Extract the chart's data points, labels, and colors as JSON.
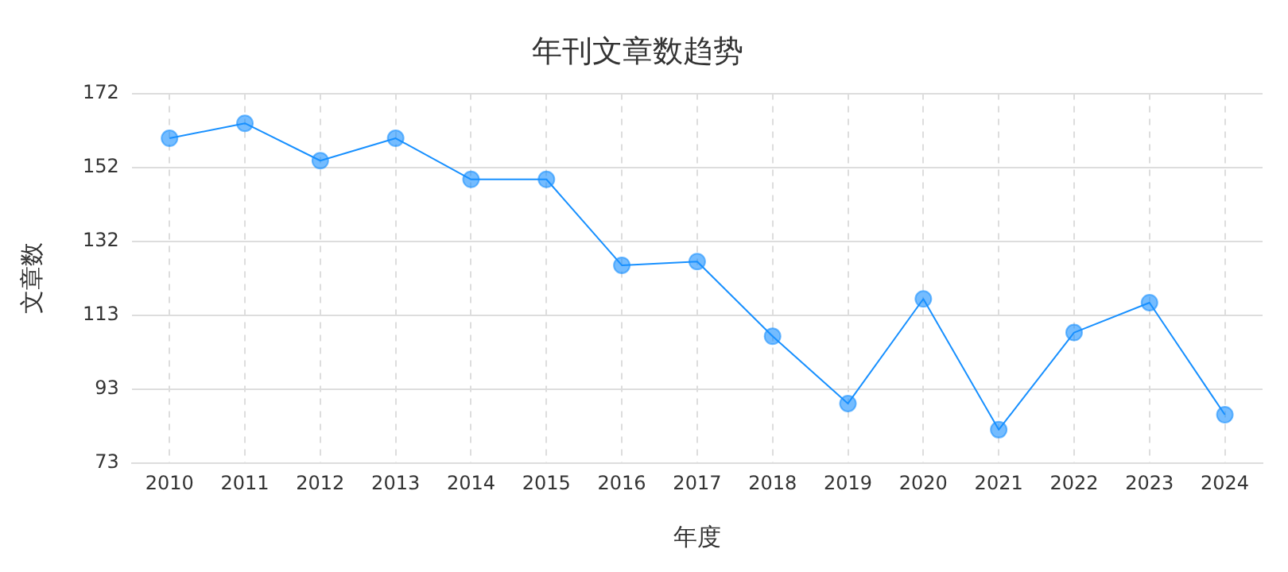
{
  "chart_data": {
    "type": "line",
    "title": "年刊文章数趋势",
    "xlabel": "年度",
    "ylabel": "文章数",
    "categories": [
      "2010",
      "2011",
      "2012",
      "2013",
      "2014",
      "2015",
      "2016",
      "2017",
      "2018",
      "2019",
      "2020",
      "2021",
      "2022",
      "2023",
      "2024"
    ],
    "series": [
      {
        "color": "#1890ff",
        "values": [
          160,
          164,
          154,
          160,
          149,
          149,
          126,
          127,
          107,
          89,
          117,
          82,
          108,
          116,
          86
        ]
      }
    ],
    "ylim": [
      73,
      172
    ],
    "yticks": [
      73,
      {
        "value": 92.8,
        "label": "93"
      },
      {
        "value": 112.6,
        "label": "113"
      },
      {
        "value": 132.4,
        "label": "132"
      },
      {
        "value": 152.2,
        "label": "152"
      },
      172
    ],
    "grid": true,
    "marker": "circle",
    "line_style": "solid",
    "legend": false
  }
}
